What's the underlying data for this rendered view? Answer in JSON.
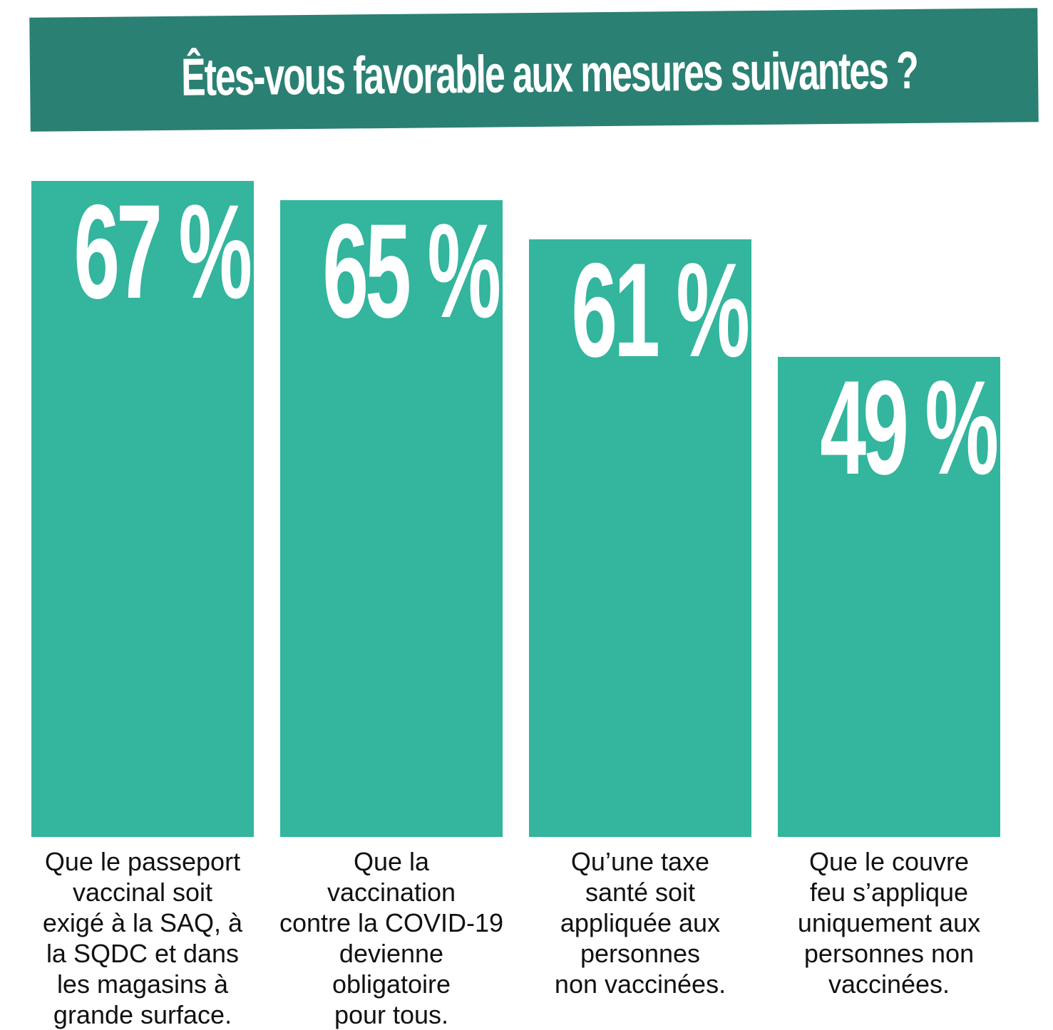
{
  "title": "Êtes-vous favorable aux mesures suivantes ?",
  "colors": {
    "banner": "#2a8072",
    "bar": "#33b59e",
    "bar_text": "#ffffff",
    "label_text": "#111111"
  },
  "chart_data": {
    "type": "bar",
    "title": "Êtes-vous favorable aux mesures suivantes ?",
    "unit": "%",
    "ylim": [
      0,
      100
    ],
    "grid": false,
    "categories": [
      "Que le passeport vaccinal soit exigé à la SAQ, à la SQDC et dans les magasins à grande surface.",
      "Que la vaccination contre la COVID-19 devienne obligatoire pour tous.",
      "Qu’une taxe santé soit appliquée aux personnes non vaccinées.",
      "Que le couvre feu s’applique uniquement aux personnes non vaccinées."
    ],
    "values": [
      67,
      65,
      61,
      49
    ],
    "value_labels": [
      "67 %",
      "65 %",
      "61 %",
      "49 %"
    ],
    "category_label_lines": [
      "Que le passeport\nvaccinal soit\nexigé à la SAQ, à\nla SQDC et dans\nles magasins à\ngrande surface.",
      "Que la\nvaccination\ncontre la COVID-19\ndevienne\nobligatoire\npour tous.",
      "Qu’une taxe\nsanté soit\nappliquée aux\npersonnes\nnon vaccinées.",
      "Que le couvre\nfeu s’applique\nuniquement aux\npersonnes non\nvaccinées."
    ]
  }
}
